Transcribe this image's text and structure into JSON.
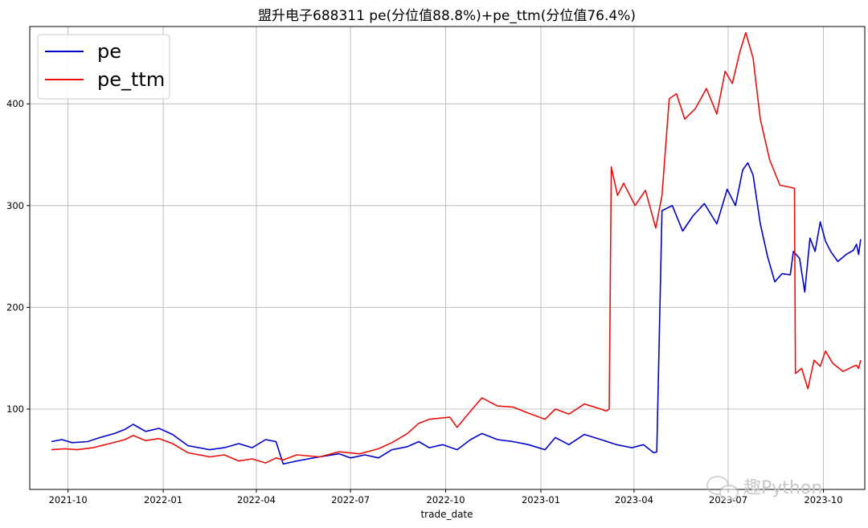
{
  "chart_data": {
    "type": "line",
    "title": "盟升电子688311 pe(分位值88.8%)+pe_ttm(分位值76.4%)",
    "xlabel": "trade_date",
    "ylabel": "",
    "x_ticks": [
      "2021-10",
      "2022-01",
      "2022-04",
      "2022-07",
      "2022-10",
      "2023-01",
      "2023-04",
      "2023-07",
      "2023-10"
    ],
    "y_ticks": [
      100,
      200,
      300,
      400
    ],
    "xlim": [
      "2021-08-25",
      "2023-11-10"
    ],
    "ylim": [
      21,
      476
    ],
    "grid": true,
    "legend_position": "top-left",
    "watermark": "趣Python",
    "series": [
      {
        "name": "pe",
        "color": "#0000cc",
        "points": [
          [
            "2021-09-15",
            68
          ],
          [
            "2021-09-25",
            70
          ],
          [
            "2021-10-05",
            67
          ],
          [
            "2021-10-20",
            68
          ],
          [
            "2021-11-01",
            72
          ],
          [
            "2021-11-15",
            76
          ],
          [
            "2021-11-25",
            80
          ],
          [
            "2021-12-03",
            85
          ],
          [
            "2021-12-15",
            78
          ],
          [
            "2021-12-28",
            81
          ],
          [
            "2022-01-10",
            75
          ],
          [
            "2022-01-25",
            64
          ],
          [
            "2022-02-15",
            60
          ],
          [
            "2022-03-01",
            62
          ],
          [
            "2022-03-15",
            66
          ],
          [
            "2022-03-28",
            62
          ],
          [
            "2022-04-10",
            70
          ],
          [
            "2022-04-20",
            68
          ],
          [
            "2022-04-27",
            46
          ],
          [
            "2022-05-10",
            49
          ],
          [
            "2022-06-01",
            53
          ],
          [
            "2022-06-20",
            56
          ],
          [
            "2022-07-01",
            52
          ],
          [
            "2022-07-15",
            55
          ],
          [
            "2022-07-28",
            52
          ],
          [
            "2022-08-10",
            60
          ],
          [
            "2022-08-25",
            63
          ],
          [
            "2022-09-05",
            68
          ],
          [
            "2022-09-15",
            62
          ],
          [
            "2022-09-28",
            65
          ],
          [
            "2022-10-12",
            60
          ],
          [
            "2022-10-25",
            70
          ],
          [
            "2022-11-05",
            76
          ],
          [
            "2022-11-20",
            70
          ],
          [
            "2022-12-05",
            68
          ],
          [
            "2022-12-20",
            65
          ],
          [
            "2023-01-05",
            60
          ],
          [
            "2023-01-15",
            72
          ],
          [
            "2023-01-28",
            65
          ],
          [
            "2023-02-12",
            75
          ],
          [
            "2023-02-28",
            70
          ],
          [
            "2023-03-15",
            65
          ],
          [
            "2023-03-30",
            62
          ],
          [
            "2023-04-10",
            65
          ],
          [
            "2023-04-20",
            57
          ],
          [
            "2023-04-23",
            58
          ],
          [
            "2023-04-28",
            295
          ],
          [
            "2023-05-08",
            300
          ],
          [
            "2023-05-18",
            275
          ],
          [
            "2023-05-28",
            290
          ],
          [
            "2023-06-08",
            302
          ],
          [
            "2023-06-20",
            282
          ],
          [
            "2023-06-30",
            316
          ],
          [
            "2023-07-08",
            300
          ],
          [
            "2023-07-15",
            335
          ],
          [
            "2023-07-20",
            342
          ],
          [
            "2023-07-25",
            330
          ],
          [
            "2023-08-01",
            282
          ],
          [
            "2023-08-08",
            250
          ],
          [
            "2023-08-15",
            225
          ],
          [
            "2023-08-22",
            233
          ],
          [
            "2023-08-30",
            232
          ],
          [
            "2023-09-02",
            255
          ],
          [
            "2023-09-08",
            248
          ],
          [
            "2023-09-13",
            215
          ],
          [
            "2023-09-18",
            268
          ],
          [
            "2023-09-23",
            255
          ],
          [
            "2023-09-28",
            284
          ],
          [
            "2023-10-03",
            265
          ],
          [
            "2023-10-08",
            255
          ],
          [
            "2023-10-15",
            245
          ],
          [
            "2023-10-23",
            252
          ],
          [
            "2023-10-30",
            256
          ],
          [
            "2023-11-02",
            262
          ],
          [
            "2023-11-04",
            252
          ],
          [
            "2023-11-06",
            267
          ]
        ]
      },
      {
        "name": "pe_ttm",
        "color": "#e8100c",
        "points": [
          [
            "2021-09-15",
            60
          ],
          [
            "2021-09-28",
            61
          ],
          [
            "2021-10-10",
            60
          ],
          [
            "2021-10-25",
            62
          ],
          [
            "2021-11-10",
            66
          ],
          [
            "2021-11-25",
            70
          ],
          [
            "2021-12-03",
            74
          ],
          [
            "2021-12-15",
            69
          ],
          [
            "2021-12-28",
            71
          ],
          [
            "2022-01-10",
            66
          ],
          [
            "2022-01-25",
            57
          ],
          [
            "2022-02-15",
            53
          ],
          [
            "2022-03-01",
            55
          ],
          [
            "2022-03-15",
            49
          ],
          [
            "2022-03-28",
            51
          ],
          [
            "2022-04-10",
            47
          ],
          [
            "2022-04-20",
            52
          ],
          [
            "2022-04-27",
            50
          ],
          [
            "2022-05-10",
            55
          ],
          [
            "2022-06-01",
            53
          ],
          [
            "2022-06-20",
            58
          ],
          [
            "2022-07-10",
            56
          ],
          [
            "2022-07-28",
            61
          ],
          [
            "2022-08-10",
            67
          ],
          [
            "2022-08-25",
            76
          ],
          [
            "2022-09-05",
            86
          ],
          [
            "2022-09-15",
            90
          ],
          [
            "2022-10-05",
            92
          ],
          [
            "2022-10-12",
            82
          ],
          [
            "2022-10-25",
            98
          ],
          [
            "2022-11-05",
            111
          ],
          [
            "2022-11-20",
            103
          ],
          [
            "2022-12-05",
            102
          ],
          [
            "2022-12-20",
            96
          ],
          [
            "2023-01-05",
            90
          ],
          [
            "2023-01-15",
            100
          ],
          [
            "2023-01-28",
            95
          ],
          [
            "2023-02-12",
            105
          ],
          [
            "2023-02-28",
            100
          ],
          [
            "2023-03-05",
            98
          ],
          [
            "2023-03-08",
            100
          ],
          [
            "2023-03-10",
            338
          ],
          [
            "2023-03-16",
            310
          ],
          [
            "2023-03-22",
            322
          ],
          [
            "2023-04-02",
            300
          ],
          [
            "2023-04-12",
            315
          ],
          [
            "2023-04-22",
            278
          ],
          [
            "2023-04-28",
            310
          ],
          [
            "2023-05-05",
            405
          ],
          [
            "2023-05-12",
            410
          ],
          [
            "2023-05-20",
            385
          ],
          [
            "2023-05-30",
            395
          ],
          [
            "2023-06-10",
            415
          ],
          [
            "2023-06-20",
            390
          ],
          [
            "2023-06-28",
            432
          ],
          [
            "2023-07-05",
            420
          ],
          [
            "2023-07-12",
            450
          ],
          [
            "2023-07-18",
            470
          ],
          [
            "2023-07-25",
            445
          ],
          [
            "2023-08-01",
            385
          ],
          [
            "2023-08-10",
            345
          ],
          [
            "2023-08-20",
            320
          ],
          [
            "2023-08-30",
            318
          ],
          [
            "2023-09-03",
            317
          ],
          [
            "2023-09-04",
            135
          ],
          [
            "2023-09-10",
            140
          ],
          [
            "2023-09-16",
            120
          ],
          [
            "2023-09-22",
            148
          ],
          [
            "2023-09-28",
            142
          ],
          [
            "2023-10-03",
            157
          ],
          [
            "2023-10-10",
            145
          ],
          [
            "2023-10-20",
            137
          ],
          [
            "2023-10-30",
            142
          ],
          [
            "2023-11-02",
            143
          ],
          [
            "2023-11-04",
            140
          ],
          [
            "2023-11-06",
            148
          ]
        ]
      }
    ]
  }
}
